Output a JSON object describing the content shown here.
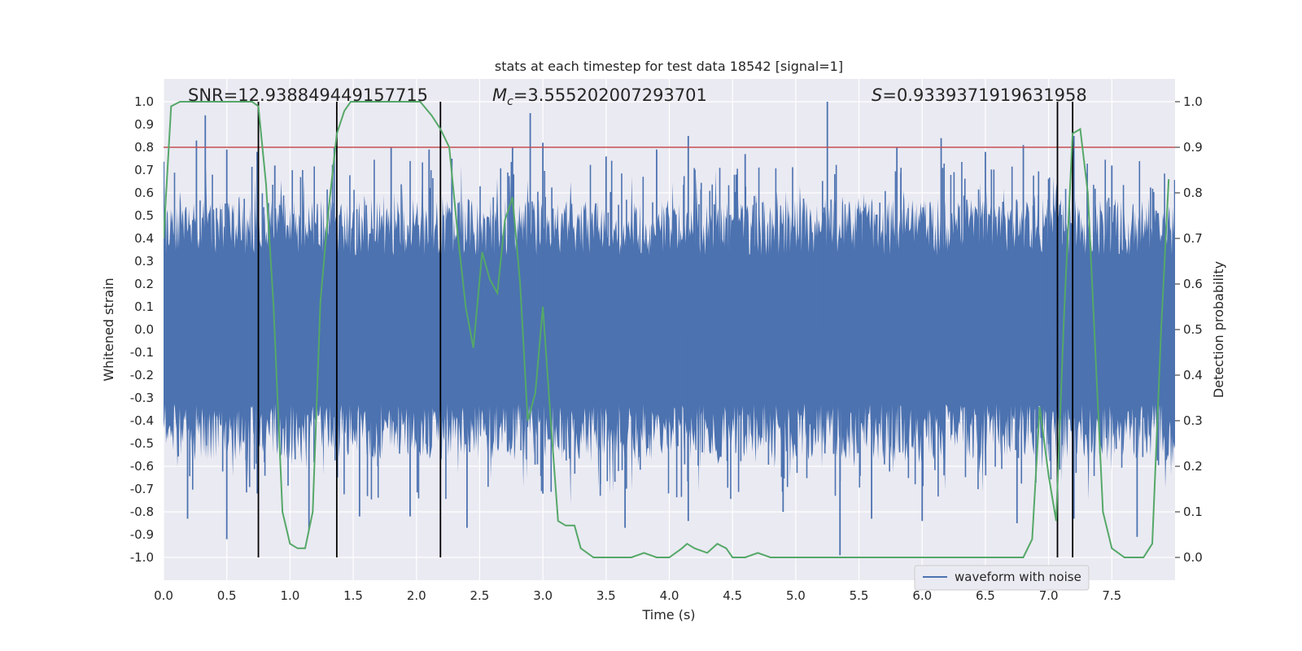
{
  "chart_data": {
    "type": "line",
    "title": "stats at each timestep for test data 18542 [signal=1]",
    "xlabel": "Time (s)",
    "ylabel_left": "Whitened strain",
    "ylabel_right": "Detection probability",
    "xlim": [
      0,
      8
    ],
    "ylim_left": [
      -1.1,
      1.1
    ],
    "ylim_right": [
      -0.05,
      1.05
    ],
    "xticks": [
      "0.0",
      "0.5",
      "1.0",
      "1.5",
      "2.0",
      "2.5",
      "3.0",
      "3.5",
      "4.0",
      "4.5",
      "5.0",
      "5.5",
      "6.0",
      "6.5",
      "7.0",
      "7.5"
    ],
    "yticks_left": [
      "-1.0",
      "-0.9",
      "-0.8",
      "-0.7",
      "-0.6",
      "-0.5",
      "-0.4",
      "-0.3",
      "-0.2",
      "-0.1",
      "0.0",
      "0.1",
      "0.2",
      "0.3",
      "0.4",
      "0.5",
      "0.6",
      "0.7",
      "0.8",
      "0.9",
      "1.0"
    ],
    "yticks_right": [
      "0.0",
      "0.1",
      "0.2",
      "0.3",
      "0.4",
      "0.5",
      "0.6",
      "0.7",
      "0.8",
      "0.9",
      "1.0"
    ],
    "annotations": {
      "snr": "SNR=12.938849449157715",
      "mc_symbol": "M",
      "mc_sub": "c",
      "mc_value": "=3.555202007293701",
      "s_symbol": "S",
      "s_value": "=0.9339371919631958"
    },
    "threshold": {
      "value": 0.9,
      "axis": "right",
      "color": "#c44e52"
    },
    "vertical_lines": [
      0.75,
      1.37,
      2.19,
      7.07,
      7.19
    ],
    "legend": {
      "label": "waveform with noise",
      "position": "lower-right"
    },
    "waveform": {
      "name": "waveform with noise",
      "color": "#4c72b0",
      "envelope_pos_base": 0.45,
      "envelope_neg_base": -0.45,
      "spikes": [
        [
          0.26,
          0.83
        ],
        [
          0.33,
          0.94
        ],
        [
          0.5,
          0.79
        ],
        [
          0.74,
          0.78
        ],
        [
          0.88,
          0.72
        ],
        [
          1.35,
          0.8
        ],
        [
          1.8,
          0.8
        ],
        [
          2.1,
          0.79
        ],
        [
          2.28,
          0.75
        ],
        [
          2.76,
          0.8
        ],
        [
          2.9,
          0.95
        ],
        [
          3.0,
          0.82
        ],
        [
          3.5,
          0.76
        ],
        [
          3.9,
          0.79
        ],
        [
          4.15,
          0.85
        ],
        [
          4.6,
          0.77
        ],
        [
          5.25,
          1.0
        ],
        [
          5.8,
          0.8
        ],
        [
          6.15,
          0.84
        ],
        [
          6.5,
          0.78
        ],
        [
          6.8,
          0.81
        ],
        [
          7.2,
          0.85
        ],
        [
          7.5,
          0.72
        ],
        [
          0.19,
          -0.83
        ],
        [
          0.5,
          -0.92
        ],
        [
          1.15,
          -0.88
        ],
        [
          1.55,
          -0.82
        ],
        [
          1.95,
          -0.82
        ],
        [
          2.4,
          -0.87
        ],
        [
          3.0,
          -0.72
        ],
        [
          3.65,
          -0.87
        ],
        [
          4.15,
          -0.84
        ],
        [
          4.9,
          -0.8
        ],
        [
          5.35,
          -0.99
        ],
        [
          5.6,
          -0.83
        ],
        [
          6.0,
          -0.84
        ],
        [
          6.75,
          -0.85
        ],
        [
          7.2,
          -0.83
        ],
        [
          7.7,
          -0.91
        ]
      ]
    },
    "series": [
      {
        "name": "Detection probability",
        "axis": "right",
        "color": "#55a868",
        "x": [
          0.0,
          0.06,
          0.13,
          0.2,
          0.3,
          0.4,
          0.5,
          0.6,
          0.7,
          0.75,
          0.81,
          0.87,
          0.94,
          1.0,
          1.06,
          1.12,
          1.18,
          1.24,
          1.3,
          1.37,
          1.43,
          1.48,
          1.55,
          1.7,
          1.85,
          2.03,
          2.12,
          2.19,
          2.26,
          2.33,
          2.39,
          2.45,
          2.52,
          2.58,
          2.64,
          2.7,
          2.76,
          2.82,
          2.88,
          2.94,
          3.0,
          3.06,
          3.12,
          3.18,
          3.25,
          3.3,
          3.4,
          3.5,
          3.6,
          3.7,
          3.8,
          3.9,
          4.0,
          4.1,
          4.14,
          4.2,
          4.3,
          4.38,
          4.45,
          4.5,
          4.6,
          4.7,
          4.8,
          4.9,
          5.0,
          5.2,
          5.4,
          5.6,
          5.8,
          6.0,
          6.1,
          6.2,
          6.3,
          6.4,
          6.5,
          6.6,
          6.7,
          6.8,
          6.87,
          6.93,
          7.0,
          7.06,
          7.12,
          7.19,
          7.25,
          7.31,
          7.37,
          7.43,
          7.5,
          7.6,
          7.68,
          7.75,
          7.82,
          7.89,
          7.95
        ],
        "values": [
          0.7,
          0.99,
          1.0,
          1.0,
          1.0,
          1.0,
          1.0,
          1.0,
          1.0,
          0.99,
          0.82,
          0.55,
          0.1,
          0.03,
          0.02,
          0.02,
          0.1,
          0.56,
          0.75,
          0.93,
          0.98,
          1.0,
          1.0,
          1.0,
          1.0,
          1.0,
          0.97,
          0.94,
          0.9,
          0.7,
          0.55,
          0.46,
          0.67,
          0.61,
          0.58,
          0.74,
          0.79,
          0.6,
          0.3,
          0.36,
          0.55,
          0.31,
          0.08,
          0.07,
          0.07,
          0.02,
          0.0,
          0.0,
          0.0,
          0.0,
          0.01,
          0.0,
          0.0,
          0.02,
          0.03,
          0.02,
          0.01,
          0.03,
          0.02,
          0.0,
          0.0,
          0.01,
          0.0,
          0.0,
          0.0,
          0.0,
          0.0,
          0.0,
          0.0,
          0.0,
          0.0,
          0.0,
          0.0,
          0.0,
          0.0,
          0.0,
          0.0,
          0.0,
          0.04,
          0.33,
          0.18,
          0.08,
          0.52,
          0.93,
          0.94,
          0.8,
          0.45,
          0.1,
          0.02,
          0.0,
          0.0,
          0.0,
          0.03,
          0.5,
          0.83
        ]
      }
    ]
  }
}
